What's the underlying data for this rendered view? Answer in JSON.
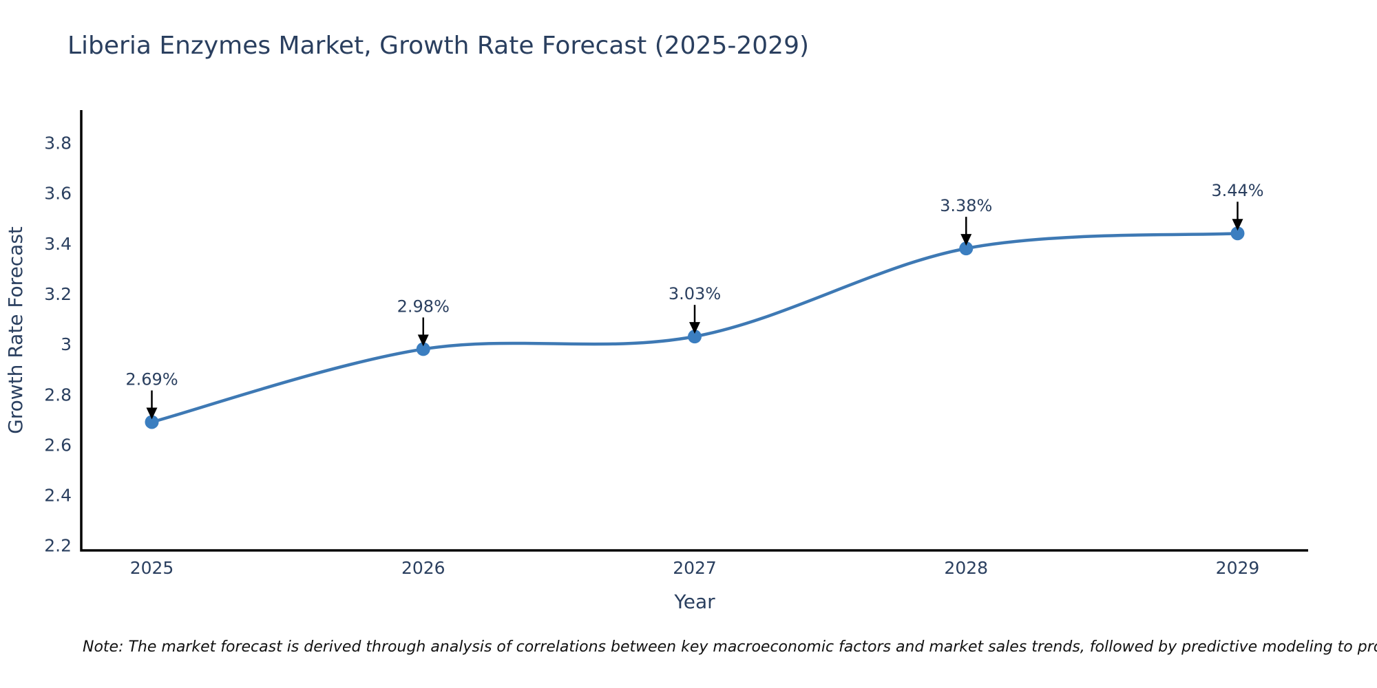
{
  "page": {
    "background": "#ffffff"
  },
  "chart_data": {
    "type": "line",
    "title": "Liberia Enzymes Market, Growth Rate Forecast (2025-2029)",
    "xlabel": "Year",
    "ylabel": "Growth Rate Forecast",
    "x": [
      2025,
      2026,
      2027,
      2028,
      2029
    ],
    "series": [
      {
        "name": "Growth Rate Forecast",
        "values": [
          2.69,
          2.98,
          3.03,
          3.38,
          3.44
        ]
      }
    ],
    "point_labels": [
      "2.69%",
      "2.98%",
      "3.03%",
      "3.38%",
      "3.44%"
    ],
    "xtick_labels": [
      "2025",
      "2026",
      "2027",
      "2028",
      "2029"
    ],
    "ytick_values": [
      2.2,
      2.4,
      2.6,
      2.8,
      3,
      3.2,
      3.4,
      3.6,
      3.8
    ],
    "ytick_labels": [
      "2.2",
      "2.4",
      "2.6",
      "2.8",
      "3",
      "3.2",
      "3.4",
      "3.6",
      "3.8"
    ],
    "xlim": [
      2024.74,
      2029.26
    ],
    "ylim": [
      2.18,
      3.93
    ],
    "grid": false,
    "legend": false,
    "line_shape": "spline",
    "colors": {
      "line": "#3e79b4",
      "marker": "#3b7ec0",
      "axis": "#000000",
      "text": "#2a3f5f",
      "arrow": "#000000"
    }
  },
  "note": {
    "text": "Note: The market forecast is derived through analysis of correlations between key macroeconomic factors and market sales trends, followed by predictive modeling to project future sales"
  }
}
